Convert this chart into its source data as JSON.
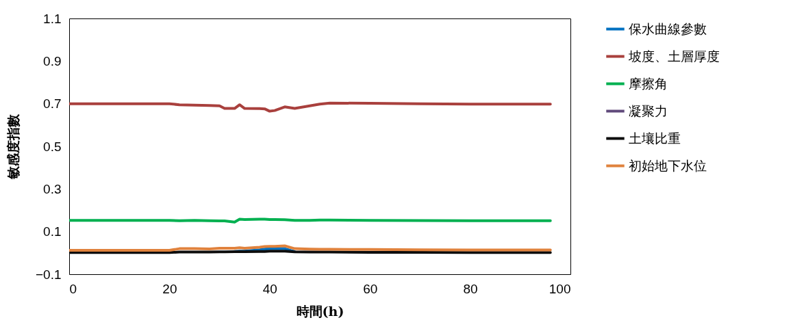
{
  "chart_data": {
    "type": "line",
    "xlabel": "時間(h)",
    "ylabel": "敏感度指數",
    "xlim": [
      0,
      100
    ],
    "xticks": [
      0,
      20,
      40,
      60,
      80,
      100
    ],
    "ylim": [
      -0.1,
      1.1
    ],
    "yticks": [
      -0.1,
      0.1,
      0.3,
      0.5,
      0.7,
      0.9,
      1.1
    ],
    "grid": false,
    "legend": "right",
    "marker": "none",
    "line_style": "solid",
    "x": [
      0,
      10,
      20,
      22,
      25,
      28,
      30,
      31,
      33,
      34,
      35,
      38,
      39,
      40,
      41,
      43,
      45,
      48,
      50,
      52,
      60,
      70,
      80,
      96
    ],
    "series": [
      {
        "name": "保水曲線參數",
        "color": "#0070c0",
        "values": [
          null,
          null,
          null,
          null,
          null,
          null,
          null,
          null,
          0.007,
          0.008,
          0.008,
          0.015,
          0.018,
          0.02,
          0.02,
          0.02,
          0.006,
          null,
          null,
          null,
          null,
          null,
          null,
          null
        ]
      },
      {
        "name": "坡度、土層厚度",
        "color": "#a9403d",
        "values": [
          0.7,
          0.7,
          0.7,
          0.695,
          0.693,
          0.692,
          0.69,
          0.678,
          0.678,
          0.695,
          0.678,
          0.677,
          0.676,
          0.665,
          0.668,
          0.685,
          0.678,
          0.69,
          0.698,
          0.703,
          0.702,
          0.7,
          0.698,
          0.698
        ]
      },
      {
        "name": "摩擦角",
        "color": "#00b050",
        "values": [
          0.153,
          0.153,
          0.153,
          0.151,
          0.153,
          0.151,
          0.15,
          0.15,
          0.145,
          0.158,
          0.157,
          0.158,
          0.158,
          0.157,
          0.157,
          0.156,
          0.153,
          0.153,
          0.154,
          0.154,
          0.153,
          0.152,
          0.151,
          0.151
        ]
      },
      {
        "name": "凝聚力",
        "color": "#604a7b",
        "values": [
          null,
          null,
          null,
          null,
          null,
          null,
          null,
          null,
          null,
          null,
          null,
          null,
          null,
          null,
          null,
          null,
          null,
          null,
          null,
          null,
          null,
          null,
          null,
          null
        ]
      },
      {
        "name": "土壤比重",
        "color": "#0d0d0d",
        "values": [
          0.002,
          0.002,
          0.002,
          0.004,
          0.004,
          0.004,
          0.005,
          0.005,
          0.006,
          0.006,
          0.006,
          0.007,
          0.007,
          0.008,
          0.008,
          0.008,
          0.005,
          0.004,
          0.004,
          0.004,
          0.003,
          0.003,
          0.002,
          0.002
        ]
      },
      {
        "name": "初始地下水位",
        "color": "#e0823d",
        "values": [
          0.012,
          0.012,
          0.012,
          0.02,
          0.02,
          0.019,
          0.022,
          0.022,
          0.022,
          0.024,
          0.022,
          0.027,
          0.03,
          0.031,
          0.031,
          0.033,
          0.02,
          0.018,
          0.017,
          0.017,
          0.016,
          0.015,
          0.014,
          0.014
        ]
      }
    ]
  }
}
